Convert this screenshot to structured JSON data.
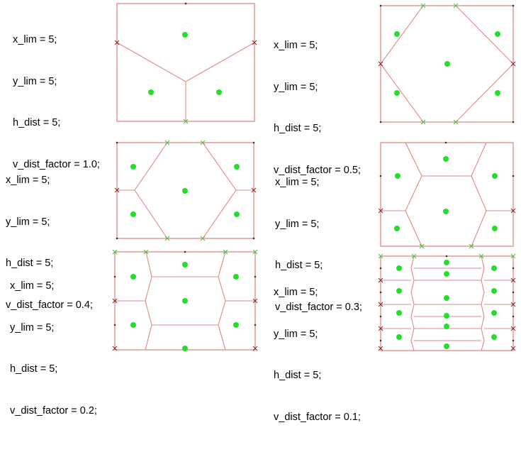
{
  "panels": [
    {
      "params": [
        "x_lim = 5;",
        "y_lim = 5;",
        "h_dist = 5;",
        "v_dist_factor = 1.0;"
      ]
    },
    {
      "params": [
        "x_lim = 5;",
        "y_lim = 5;",
        "h_dist = 5;",
        "v_dist_factor = 0.5;"
      ]
    },
    {
      "params": [
        "x_lim = 5;",
        "y_lim = 5;",
        "h_dist = 5;",
        "v_dist_factor = 0.4;"
      ]
    },
    {
      "params": [
        "x_lim = 5;",
        "y_lim = 5;",
        "h_dist = 5;",
        "v_dist_factor = 0.3;"
      ]
    },
    {
      "params": [
        "x_lim = 5;",
        "y_lim = 5;",
        "h_dist = 5;",
        "v_dist_factor = 0.2;"
      ]
    },
    {
      "params": [
        "x_lim = 5;",
        "y_lim = 5;",
        "h_dist = 5;",
        "v_dist_factor = 0.1;"
      ]
    }
  ],
  "colors": {
    "edge": "#e08a84",
    "site": "#22e02a",
    "vertex_marker": "#7a2a2a"
  }
}
